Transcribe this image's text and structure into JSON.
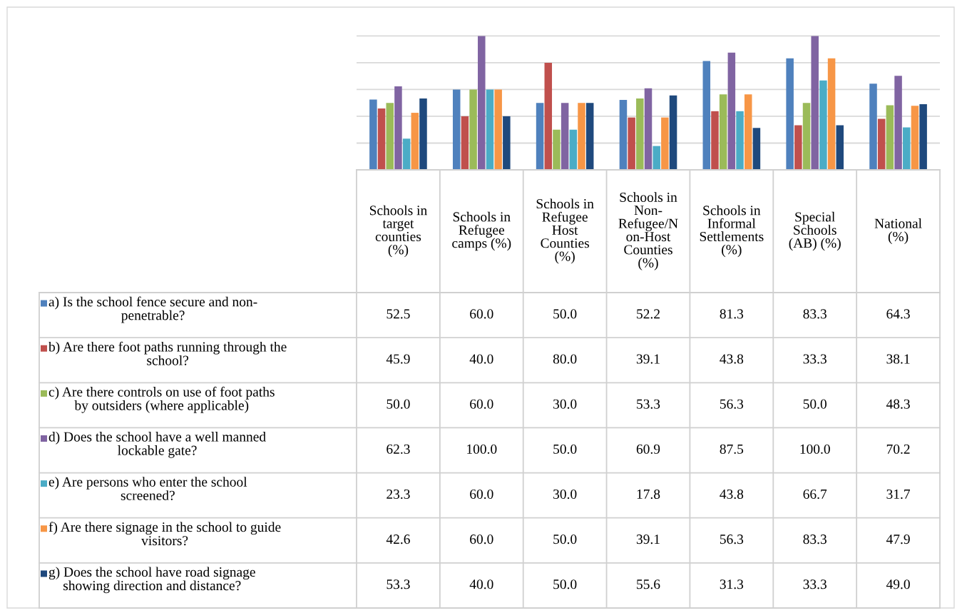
{
  "chart_data": {
    "type": "bar",
    "categories": [
      "Schools in\ntarget\ncounties\n(%)",
      "Schools in\nRefugee\ncamps (%)",
      "Schools in\nRefugee\nHost\nCounties\n(%)",
      "Schools in\nNon-\nRefugee/N\non-Host\nCounties\n(%)",
      "Schools in\nInformal\nSettlements\n(%)",
      "Special\nSchools\n(AB) (%)",
      "National\n(%)"
    ],
    "series": [
      {
        "name": "a) Is the school fence secure and non-\npenetrable?",
        "color": "#4f81bd",
        "values": [
          52.5,
          60.0,
          50.0,
          52.2,
          81.3,
          83.3,
          64.3
        ],
        "value_labels": [
          "52.5",
          "60.0",
          "50.0",
          "52.2",
          "81.3",
          "83.3",
          "64.3"
        ]
      },
      {
        "name": "b) Are there foot paths running through the\nschool?",
        "color": "#c0504d",
        "values": [
          45.9,
          40.0,
          80.0,
          39.1,
          43.8,
          33.3,
          38.1
        ],
        "value_labels": [
          "45.9",
          "40.0",
          "80.0",
          "39.1",
          "43.8",
          "33.3",
          "38.1"
        ]
      },
      {
        "name": "c) Are there controls on use of foot paths\nby outsiders (where applicable)",
        "color": "#9bbb59",
        "values": [
          50.0,
          60.0,
          30.0,
          53.3,
          56.3,
          50.0,
          48.3
        ],
        "value_labels": [
          "50.0",
          "60.0",
          "30.0",
          "53.3",
          "56.3",
          "50.0",
          "48.3"
        ]
      },
      {
        "name": "d) Does the school have a well manned\nlockable gate?",
        "color": "#8064a2",
        "values": [
          62.3,
          100.0,
          50.0,
          60.9,
          87.5,
          100.0,
          70.2
        ],
        "value_labels": [
          "62.3",
          "100.0",
          "50.0",
          "60.9",
          "87.5",
          "100.0",
          "70.2"
        ]
      },
      {
        "name": "e) Are persons who enter the school\nscreened?",
        "color": "#4bacc6",
        "values": [
          23.3,
          60.0,
          30.0,
          17.8,
          43.8,
          66.7,
          31.7
        ],
        "value_labels": [
          "23.3",
          "60.0",
          "30.0",
          "17.8",
          "43.8",
          "66.7",
          "31.7"
        ]
      },
      {
        "name": "f) Are there signage in the school to guide\nvisitors?",
        "color": "#f79646",
        "values": [
          42.6,
          60.0,
          50.0,
          39.1,
          56.3,
          83.3,
          47.9
        ],
        "value_labels": [
          "42.6",
          "60.0",
          "50.0",
          "39.1",
          "56.3",
          "83.3",
          "47.9"
        ]
      },
      {
        "name": "g) Does the school have road signage\nshowing direction and distance?",
        "color": "#1f497d",
        "values": [
          53.3,
          40.0,
          50.0,
          55.6,
          31.3,
          33.3,
          49.0
        ],
        "value_labels": [
          "53.3",
          "40.0",
          "50.0",
          "55.6",
          "31.3",
          "33.3",
          "49.0"
        ]
      }
    ],
    "grid": "y",
    "tick_labels": "x",
    "legend": "left"
  }
}
